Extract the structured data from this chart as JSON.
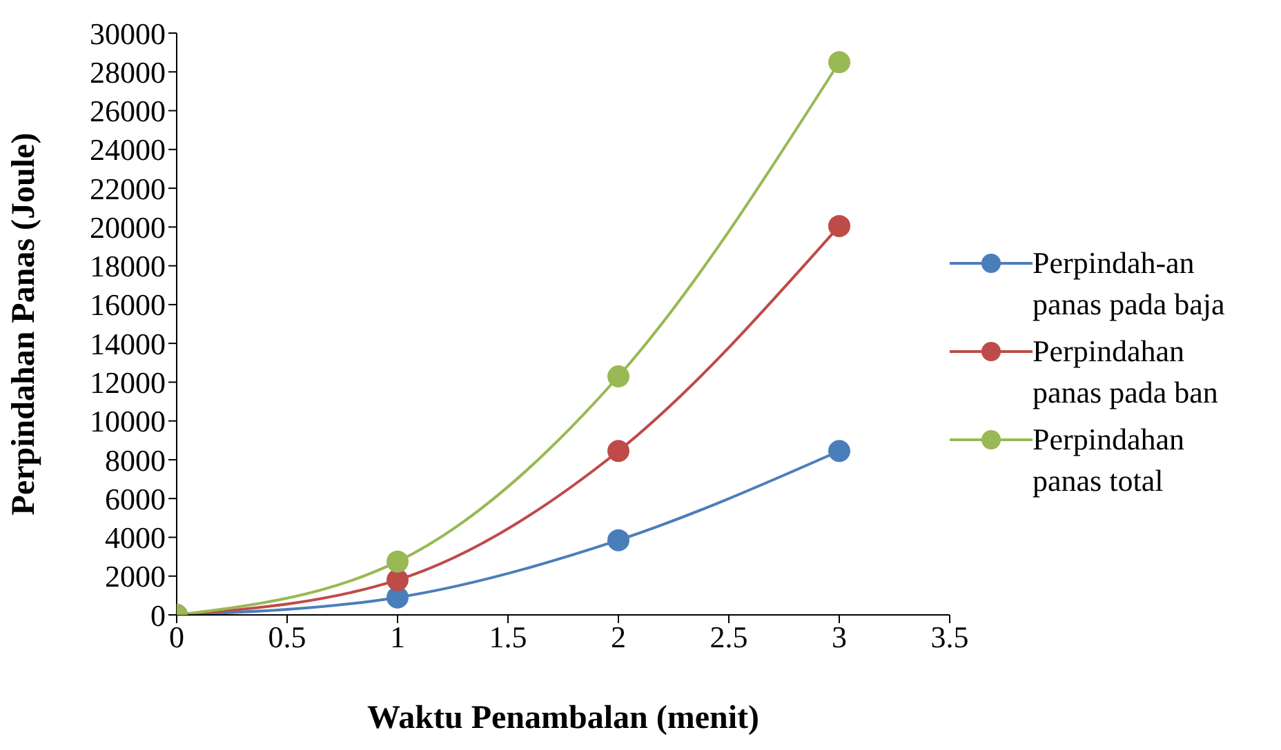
{
  "chart_data": {
    "type": "line",
    "xlabel": "Waktu Penambalan (menit)",
    "ylabel": "Perpindahan Panas (Joule)",
    "x": [
      0,
      1,
      2,
      3
    ],
    "series": [
      {
        "name": "Perpindah-an panas pada baja",
        "color": "#4a7ebb",
        "values": [
          0,
          900,
          3850,
          8450
        ]
      },
      {
        "name": "Perpindahan panas pada ban",
        "color": "#be4b48",
        "values": [
          0,
          1800,
          8450,
          20050
        ]
      },
      {
        "name": "Perpindahan panas total",
        "color": "#98b954",
        "values": [
          0,
          2750,
          12300,
          28500
        ]
      }
    ],
    "xlim": [
      0,
      3.5
    ],
    "xticks": [
      0,
      0.5,
      1,
      1.5,
      2,
      2.5,
      3,
      3.5
    ],
    "ylim": [
      0,
      30000
    ],
    "yticks": [
      0,
      2000,
      4000,
      6000,
      8000,
      10000,
      12000,
      14000,
      16000,
      18000,
      20000,
      22000,
      24000,
      26000,
      28000,
      30000
    ],
    "grid": false,
    "legend": "right",
    "marker": "circle",
    "line_style": "solid"
  }
}
